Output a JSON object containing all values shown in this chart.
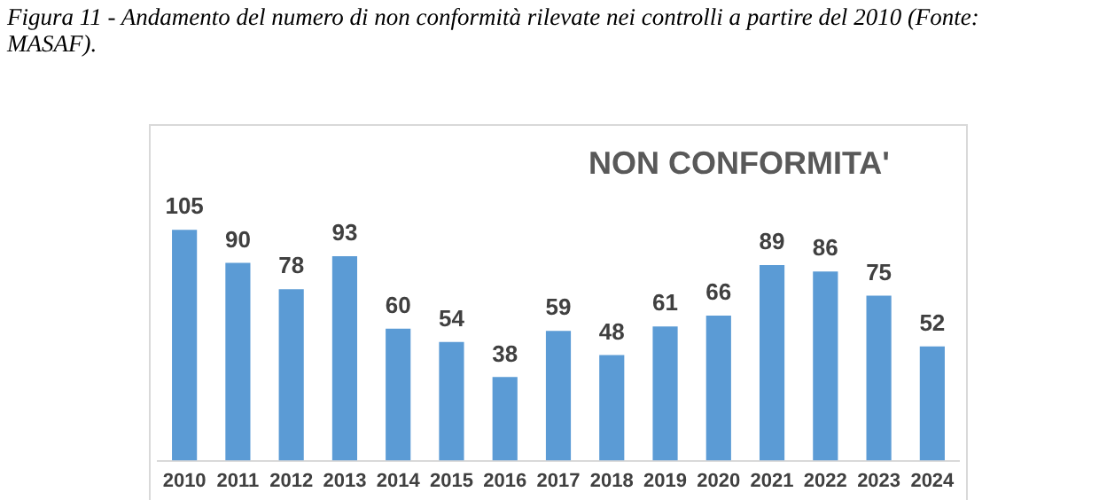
{
  "chart_data": {
    "type": "bar",
    "title": "NON CONFORMITA'",
    "annotations": [
      "Figura 11 - Andamento del numero di non conformità rilevate nei controlli a partire del 2010 (Fonte: MASAF)."
    ],
    "categories": [
      "2010",
      "2011",
      "2012",
      "2013",
      "2014",
      "2015",
      "2016",
      "2017",
      "2018",
      "2019",
      "2020",
      "2021",
      "2022",
      "2023",
      "2024"
    ],
    "values": [
      105,
      90,
      78,
      93,
      60,
      54,
      38,
      59,
      48,
      61,
      66,
      89,
      86,
      75,
      52
    ],
    "color": "#5b9bd5",
    "data_labels": true,
    "grid": false,
    "legend": false
  }
}
